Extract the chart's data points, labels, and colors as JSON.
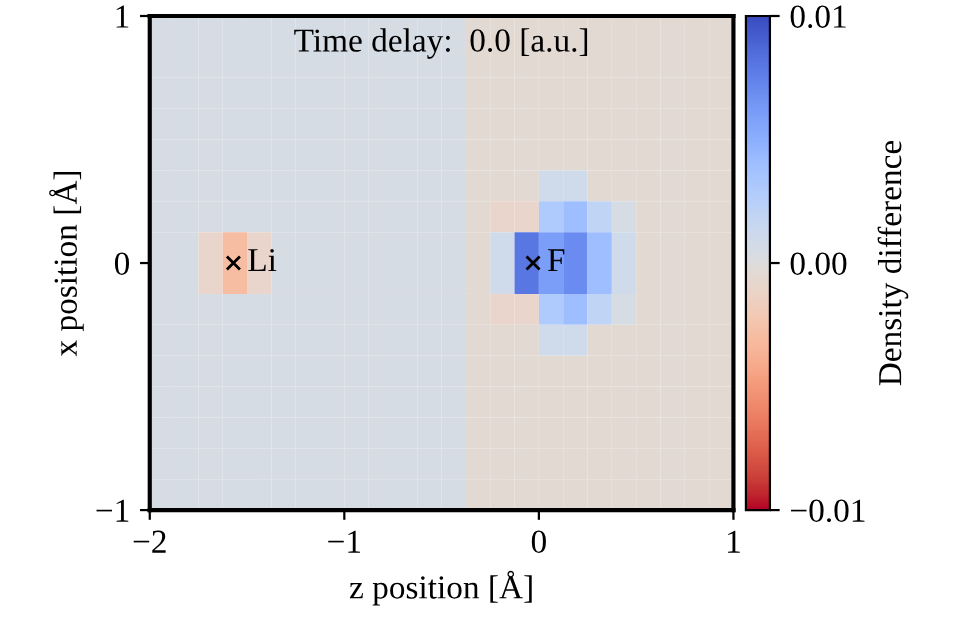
{
  "chart_data": [
    {
      "type": "heatmap",
      "title": "Time delay:  0.0 [a.u.]",
      "xlabel": "z position [Å]",
      "ylabel": "x position [Å]",
      "clabel": "Density difference",
      "xlim": [
        -2,
        1
      ],
      "ylim": [
        -1,
        1
      ],
      "xticks": [
        {
          "value": -2,
          "label": "−2"
        },
        {
          "value": -1,
          "label": "−1"
        },
        0,
        1
      ],
      "yticks": [
        {
          "value": -1,
          "label": "−1"
        },
        0,
        1
      ],
      "clim": [
        -0.01,
        0.01
      ],
      "cticks": [
        {
          "value": -0.01,
          "label": "−0.01"
        },
        {
          "value": 0,
          "label": "0.00"
        },
        {
          "value": 0.01,
          "label": "0.01"
        }
      ],
      "cells": [
        [
          0.0005,
          0.0005,
          0.0005,
          0.0005,
          0.0005,
          0.0005,
          0.0005,
          0.0005,
          0.0005,
          0.0005,
          0.0005,
          0.0005,
          0.0005,
          -0.0005,
          -0.0005,
          -0.0005,
          -0.0005,
          -0.0005,
          -0.0005,
          -0.0005,
          -0.0005,
          -0.0005,
          -0.0005,
          -0.0005
        ],
        [
          0.0005,
          0.0005,
          0.0005,
          0.0005,
          0.0005,
          0.0005,
          0.0005,
          0.0005,
          0.0005,
          0.0005,
          0.0005,
          0.0005,
          0.0005,
          -0.0005,
          -0.0005,
          -0.0005,
          -0.0005,
          -0.0005,
          -0.0005,
          -0.0005,
          -0.0005,
          -0.0005,
          -0.0005,
          -0.0005
        ],
        [
          0.0005,
          0.0005,
          0.0005,
          0.0005,
          0.0005,
          0.0005,
          0.0005,
          0.0005,
          0.0005,
          0.0005,
          0.0005,
          0.0005,
          0.0005,
          -0.0005,
          -0.0005,
          -0.0005,
          -0.0005,
          -0.0005,
          -0.0005,
          -0.0005,
          -0.0005,
          -0.0005,
          -0.0005,
          -0.0005
        ],
        [
          0.0005,
          0.0005,
          0.0005,
          0.0005,
          0.0005,
          0.0005,
          0.0005,
          0.0005,
          0.0005,
          0.0005,
          0.0005,
          0.0005,
          0.0005,
          -0.0005,
          -0.0005,
          -0.0005,
          -0.0005,
          -0.0005,
          -0.0005,
          -0.0005,
          -0.0005,
          -0.0005,
          -0.0005,
          -0.0005
        ],
        [
          0.0005,
          0.0005,
          0.0005,
          0.0005,
          0.0005,
          0.0005,
          0.0005,
          0.0005,
          0.0005,
          0.0005,
          0.0005,
          0.0005,
          0.0005,
          -0.0005,
          -0.0005,
          -0.0005,
          -0.0005,
          -0.0005,
          -0.0005,
          -0.0005,
          -0.0005,
          -0.0005,
          -0.0005,
          -0.0005
        ],
        [
          0.0005,
          0.0005,
          0.0005,
          0.0005,
          0.0005,
          0.0005,
          0.0005,
          0.0005,
          0.0005,
          0.0005,
          0.0005,
          0.0005,
          0.0005,
          -0.0005,
          -0.0005,
          -0.0005,
          0.001,
          0.001,
          -0.0005,
          -0.0005,
          -0.0005,
          -0.0005,
          -0.0005,
          -0.0005
        ],
        [
          0.0005,
          0.0005,
          0.0005,
          0.0005,
          0.0005,
          0.0005,
          0.0005,
          0.0005,
          0.0005,
          0.0005,
          0.0005,
          0.0005,
          0.0005,
          -0.0005,
          -0.001,
          -0.001,
          0.003,
          0.004,
          0.002,
          0.0005,
          -0.0005,
          -0.0005,
          -0.0005,
          -0.0005
        ],
        [
          0.0005,
          0.0005,
          -0.001,
          -0.003,
          -0.001,
          0.0005,
          0.0005,
          0.0005,
          0.0005,
          0.0005,
          0.0005,
          0.0005,
          0.0005,
          -0.0005,
          0.001,
          0.008,
          0.006,
          0.007,
          0.004,
          0.001,
          -0.0005,
          -0.0005,
          -0.0005,
          -0.0005
        ],
        [
          0.0005,
          0.0005,
          -0.001,
          -0.003,
          -0.001,
          0.0005,
          0.0005,
          0.0005,
          0.0005,
          0.0005,
          0.0005,
          0.0005,
          0.0005,
          -0.0005,
          0.001,
          0.008,
          0.006,
          0.007,
          0.004,
          0.001,
          -0.0005,
          -0.0005,
          -0.0005,
          -0.0005
        ],
        [
          0.0005,
          0.0005,
          0.0005,
          0.0005,
          0.0005,
          0.0005,
          0.0005,
          0.0005,
          0.0005,
          0.0005,
          0.0005,
          0.0005,
          0.0005,
          -0.0005,
          -0.001,
          -0.001,
          0.003,
          0.004,
          0.002,
          0.0005,
          -0.0005,
          -0.0005,
          -0.0005,
          -0.0005
        ],
        [
          0.0005,
          0.0005,
          0.0005,
          0.0005,
          0.0005,
          0.0005,
          0.0005,
          0.0005,
          0.0005,
          0.0005,
          0.0005,
          0.0005,
          0.0005,
          -0.0005,
          -0.0005,
          -0.0005,
          0.001,
          0.001,
          -0.0005,
          -0.0005,
          -0.0005,
          -0.0005,
          -0.0005,
          -0.0005
        ],
        [
          0.0005,
          0.0005,
          0.0005,
          0.0005,
          0.0005,
          0.0005,
          0.0005,
          0.0005,
          0.0005,
          0.0005,
          0.0005,
          0.0005,
          0.0005,
          -0.0005,
          -0.0005,
          -0.0005,
          -0.0005,
          -0.0005,
          -0.0005,
          -0.0005,
          -0.0005,
          -0.0005,
          -0.0005,
          -0.0005
        ],
        [
          0.0005,
          0.0005,
          0.0005,
          0.0005,
          0.0005,
          0.0005,
          0.0005,
          0.0005,
          0.0005,
          0.0005,
          0.0005,
          0.0005,
          0.0005,
          -0.0005,
          -0.0005,
          -0.0005,
          -0.0005,
          -0.0005,
          -0.0005,
          -0.0005,
          -0.0005,
          -0.0005,
          -0.0005,
          -0.0005
        ],
        [
          0.0005,
          0.0005,
          0.0005,
          0.0005,
          0.0005,
          0.0005,
          0.0005,
          0.0005,
          0.0005,
          0.0005,
          0.0005,
          0.0005,
          0.0005,
          -0.0005,
          -0.0005,
          -0.0005,
          -0.0005,
          -0.0005,
          -0.0005,
          -0.0005,
          -0.0005,
          -0.0005,
          -0.0005,
          -0.0005
        ],
        [
          0.0005,
          0.0005,
          0.0005,
          0.0005,
          0.0005,
          0.0005,
          0.0005,
          0.0005,
          0.0005,
          0.0005,
          0.0005,
          0.0005,
          0.0005,
          -0.0005,
          -0.0005,
          -0.0005,
          -0.0005,
          -0.0005,
          -0.0005,
          -0.0005,
          -0.0005,
          -0.0005,
          -0.0005,
          -0.0005
        ],
        [
          0.0005,
          0.0005,
          0.0005,
          0.0005,
          0.0005,
          0.0005,
          0.0005,
          0.0005,
          0.0005,
          0.0005,
          0.0005,
          0.0005,
          0.0005,
          -0.0005,
          -0.0005,
          -0.0005,
          -0.0005,
          -0.0005,
          -0.0005,
          -0.0005,
          -0.0005,
          -0.0005,
          -0.0005,
          -0.0005
        ]
      ],
      "series": [
        {
          "type": "scatter",
          "x": [
            -1.57,
            -0.03
          ],
          "values": [
            0,
            0
          ],
          "color": "#000000",
          "marker": "cross"
        }
      ],
      "annotations": [
        {
          "text": "Li",
          "x": -1.57,
          "y": 0
        },
        {
          "text": "F",
          "x": -0.03,
          "y": 0
        }
      ]
    }
  ]
}
